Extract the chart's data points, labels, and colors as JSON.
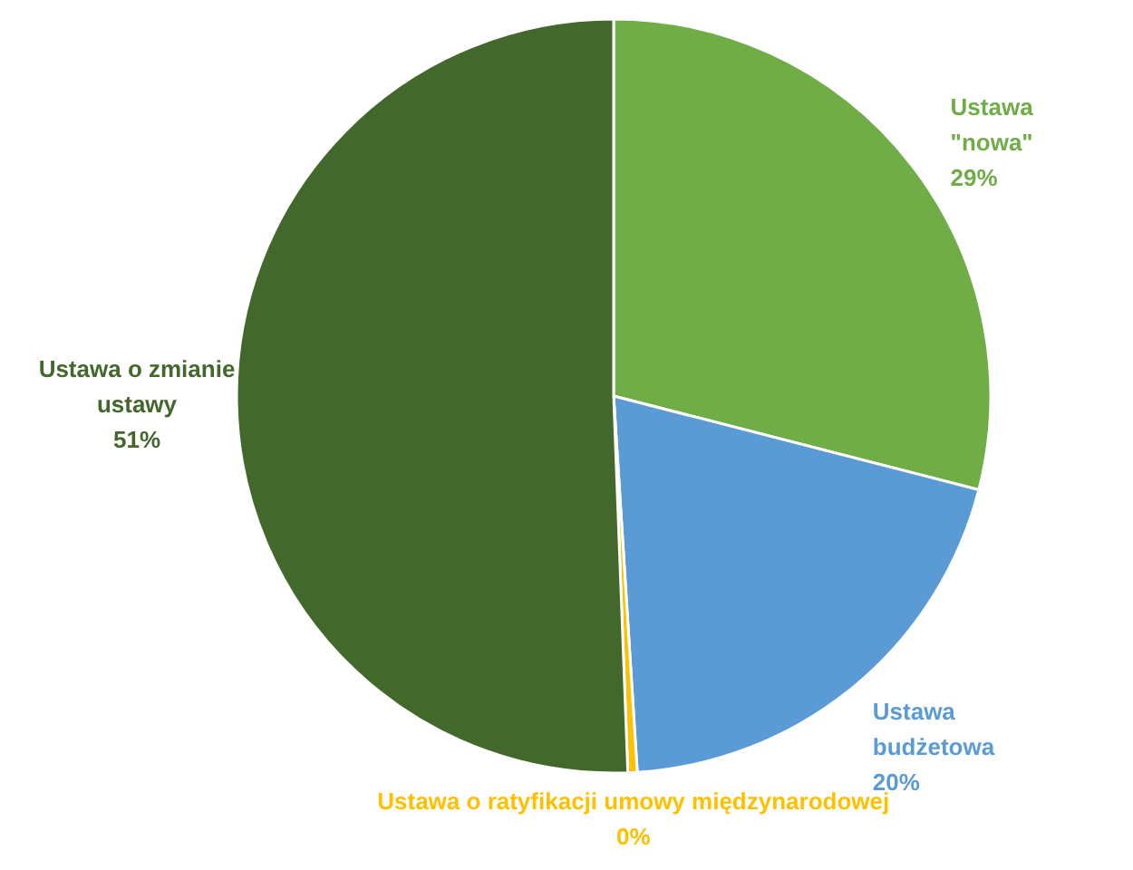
{
  "chart_data": {
    "type": "pie",
    "categories": [
      "Ustawa \"nowa\"",
      "Ustawa budżetowa",
      "Ustawa o ratyfikacji umowy międzynarodowej",
      "Ustawa o zmianie ustawy"
    ],
    "values": [
      29,
      20,
      0.4,
      50.6
    ],
    "value_labels": [
      "29%",
      "20%",
      "0%",
      "51%"
    ],
    "colors": [
      "#70ad47",
      "#5b9bd5",
      "#ffc000",
      "#43682b"
    ]
  }
}
